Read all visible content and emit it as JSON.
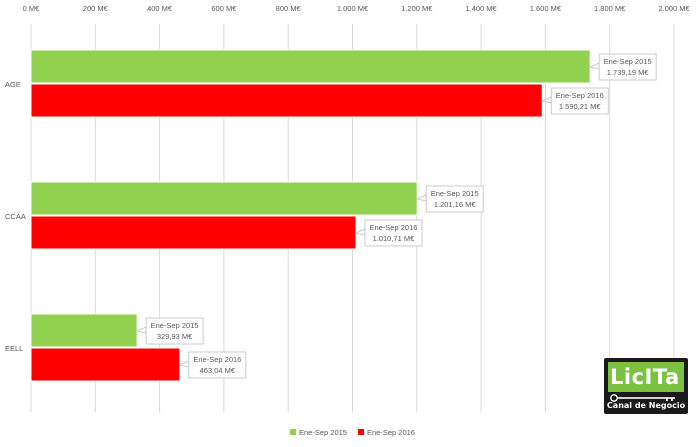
{
  "chart_data": {
    "type": "bar",
    "orientation": "horizontal",
    "categories": [
      "AGE",
      "CCAA",
      "EELL"
    ],
    "series": [
      {
        "name": "Ene-Sep 2015",
        "values": [
          1739.19,
          1201.16,
          329.93
        ],
        "color": "#92d050",
        "labels": [
          "1.739,19 M€",
          "1.201,16 M€",
          "329,93 M€"
        ]
      },
      {
        "name": "Ene-Sep 2016",
        "values": [
          1590.21,
          1010.71,
          463.04
        ],
        "color": "#ff0000",
        "labels": [
          "1.590,21 M€",
          "1.010,71 M€",
          "463,04 M€"
        ]
      }
    ],
    "xlim": [
      0,
      2000
    ],
    "xticks": [
      "0 M€",
      "200 M€",
      "400 M€",
      "600 M€",
      "800 M€",
      "1.000 M€",
      "1.200 M€",
      "1.400 M€",
      "1.600 M€",
      "1.800 M€",
      "2.000 M€"
    ],
    "x_axis_position": "top",
    "grid": true,
    "legend": "bottom",
    "title": "",
    "xlabel": "",
    "ylabel": ""
  },
  "logo": {
    "name": "LicITa",
    "subtitle": "Canal de Negocio"
  },
  "colors": {
    "grid": "#d9d9d9",
    "text": "#595959",
    "logo_green": "#7dc142"
  }
}
